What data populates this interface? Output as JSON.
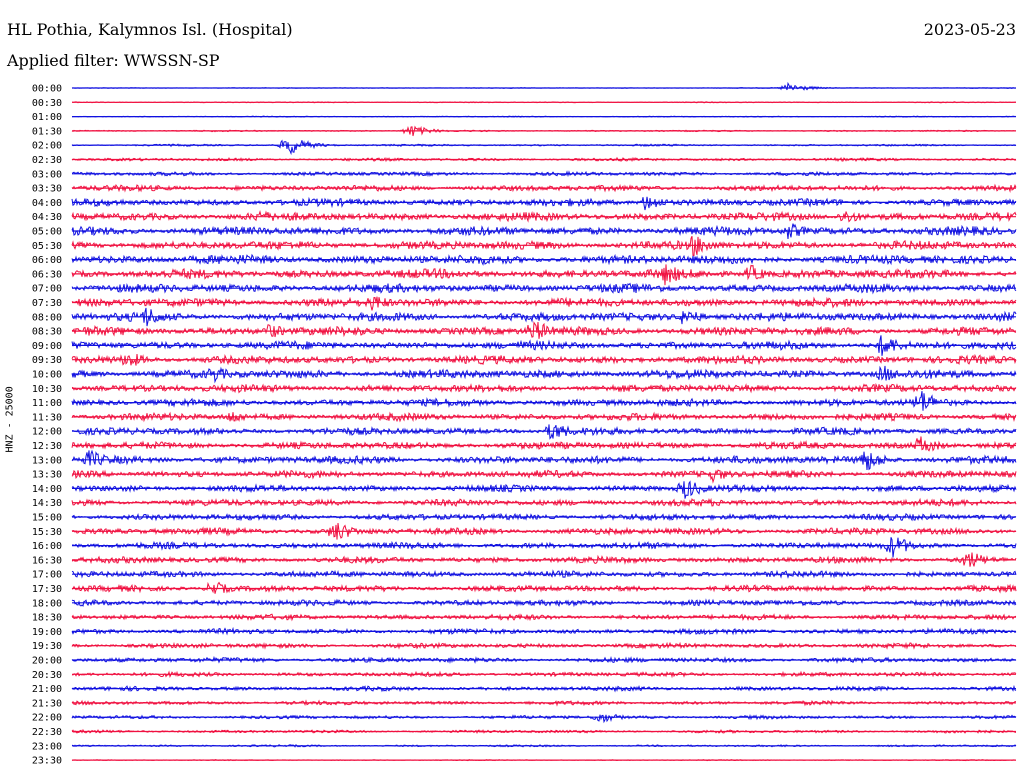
{
  "header": {
    "title": "HL Pothia, Kalymnos Isl. (Hospital)",
    "date": "2023-05-23",
    "filter_label": "Applied filter: WWSSN-SP"
  },
  "colors": {
    "even_rows": "#1010e0",
    "odd_rows": "#f01040"
  },
  "chart_data": {
    "type": "line",
    "title": "HL Pothia, Kalymnos Isl. (Hospital)",
    "subtitle": "Applied filter: WWSSN-SP",
    "ylabel": "HNZ - 25000",
    "rows": [
      "00:00",
      "00:30",
      "01:00",
      "01:30",
      "02:00",
      "02:30",
      "03:00",
      "03:30",
      "04:00",
      "04:30",
      "05:00",
      "05:30",
      "06:00",
      "06:30",
      "07:00",
      "07:30",
      "08:00",
      "08:30",
      "09:00",
      "09:30",
      "10:00",
      "10:30",
      "11:00",
      "11:30",
      "12:00",
      "12:30",
      "13:00",
      "13:30",
      "14:00",
      "14:30",
      "15:00",
      "15:30",
      "16:00",
      "16:30",
      "17:00",
      "17:30",
      "18:00",
      "18:30",
      "19:00",
      "19:30",
      "20:00",
      "20:30",
      "21:00",
      "21:30",
      "22:00",
      "22:30",
      "23:00",
      "23:30"
    ],
    "noise_level": [
      0.3,
      0.4,
      0.4,
      0.6,
      0.8,
      1.2,
      1.6,
      2.4,
      3.0,
      3.4,
      3.6,
      3.6,
      3.8,
      3.8,
      3.6,
      3.6,
      3.6,
      3.6,
      3.4,
      3.4,
      3.6,
      3.2,
      3.0,
      3.0,
      3.0,
      3.0,
      3.2,
      3.0,
      2.8,
      2.8,
      2.6,
      2.8,
      2.6,
      2.6,
      2.6,
      2.6,
      2.4,
      2.2,
      2.2,
      2.0,
      2.0,
      1.8,
      1.8,
      1.6,
      1.4,
      1.2,
      0.8,
      0.4
    ],
    "events": [
      {
        "row": "00:00",
        "x_fraction": 0.76,
        "amplitude": 5
      },
      {
        "row": "01:30",
        "x_fraction": 0.36,
        "amplitude": 6
      },
      {
        "row": "02:00",
        "x_fraction": 0.23,
        "amplitude": 10
      },
      {
        "row": "04:00",
        "x_fraction": 0.61,
        "amplitude": 9
      },
      {
        "row": "04:30",
        "x_fraction": 0.82,
        "amplitude": 8
      },
      {
        "row": "04:30",
        "x_fraction": 0.2,
        "amplitude": 7
      },
      {
        "row": "05:00",
        "x_fraction": 0.76,
        "amplitude": 9
      },
      {
        "row": "05:30",
        "x_fraction": 0.66,
        "amplitude": 12
      },
      {
        "row": "06:30",
        "x_fraction": 0.63,
        "amplitude": 12
      },
      {
        "row": "06:30",
        "x_fraction": 0.72,
        "amplitude": 9
      },
      {
        "row": "07:30",
        "x_fraction": 0.32,
        "amplitude": 9
      },
      {
        "row": "08:00",
        "x_fraction": 0.08,
        "amplitude": 11
      },
      {
        "row": "08:00",
        "x_fraction": 0.65,
        "amplitude": 9
      },
      {
        "row": "08:30",
        "x_fraction": 0.49,
        "amplitude": 12
      },
      {
        "row": "08:30",
        "x_fraction": 0.21,
        "amplitude": 8
      },
      {
        "row": "09:00",
        "x_fraction": 0.86,
        "amplitude": 12
      },
      {
        "row": "09:30",
        "x_fraction": 0.06,
        "amplitude": 9
      },
      {
        "row": "10:00",
        "x_fraction": 0.15,
        "amplitude": 9
      },
      {
        "row": "10:00",
        "x_fraction": 0.86,
        "amplitude": 9
      },
      {
        "row": "11:00",
        "x_fraction": 0.9,
        "amplitude": 13
      },
      {
        "row": "11:30",
        "x_fraction": 0.17,
        "amplitude": 7
      },
      {
        "row": "12:00",
        "x_fraction": 0.51,
        "amplitude": 10
      },
      {
        "row": "12:30",
        "x_fraction": 0.9,
        "amplitude": 10
      },
      {
        "row": "13:00",
        "x_fraction": 0.84,
        "amplitude": 13
      },
      {
        "row": "13:00",
        "x_fraction": 0.02,
        "amplitude": 10
      },
      {
        "row": "13:30",
        "x_fraction": 0.68,
        "amplitude": 8
      },
      {
        "row": "14:00",
        "x_fraction": 0.65,
        "amplitude": 11
      },
      {
        "row": "15:30",
        "x_fraction": 0.28,
        "amplitude": 11
      },
      {
        "row": "16:00",
        "x_fraction": 0.87,
        "amplitude": 12
      },
      {
        "row": "16:30",
        "x_fraction": 0.95,
        "amplitude": 10
      },
      {
        "row": "17:30",
        "x_fraction": 0.15,
        "amplitude": 8
      },
      {
        "row": "22:00",
        "x_fraction": 0.56,
        "amplitude": 6
      }
    ]
  }
}
